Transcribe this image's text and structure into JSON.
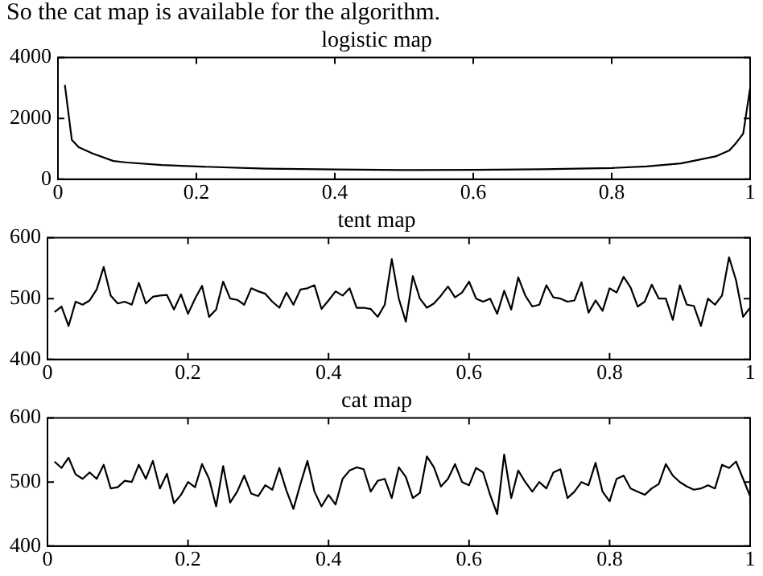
{
  "chart_data": [
    {
      "type": "line",
      "title": "logistic map",
      "annotations": [
        "So the cat map is available for the algorithm."
      ],
      "xlim": [
        0,
        1
      ],
      "xticks": [
        0,
        0.2,
        0.4,
        0.6,
        0.8,
        1
      ],
      "ylim": [
        0,
        4000
      ],
      "yticks": [
        0,
        2000,
        4000
      ],
      "grid": false,
      "legend": false,
      "marker": "none",
      "x": [
        0.01,
        0.02,
        0.03,
        0.05,
        0.08,
        0.1,
        0.15,
        0.2,
        0.3,
        0.4,
        0.5,
        0.6,
        0.7,
        0.8,
        0.85,
        0.9,
        0.95,
        0.97,
        0.98,
        0.99,
        1.0
      ],
      "series": [
        {
          "color": "#000000",
          "values": [
            3100,
            1300,
            1050,
            850,
            600,
            550,
            470,
            420,
            350,
            320,
            300,
            310,
            330,
            370,
            420,
            520,
            750,
            950,
            1200,
            1500,
            3000
          ]
        }
      ]
    },
    {
      "type": "line",
      "title": "tent map",
      "xlim": [
        0,
        1
      ],
      "xticks": [
        0,
        0.2,
        0.4,
        0.6,
        0.8,
        1
      ],
      "ylim": [
        400,
        600
      ],
      "yticks": [
        400,
        500,
        600
      ],
      "grid": false,
      "legend": false,
      "marker": "none",
      "x": [
        0.01,
        0.02,
        0.03,
        0.04,
        0.05,
        0.06,
        0.07,
        0.08,
        0.09,
        0.1,
        0.11,
        0.12,
        0.13,
        0.14,
        0.15,
        0.16,
        0.17,
        0.18,
        0.19,
        0.2,
        0.21,
        0.22,
        0.23,
        0.24,
        0.25,
        0.26,
        0.27,
        0.28,
        0.29,
        0.3,
        0.31,
        0.32,
        0.33,
        0.34,
        0.35,
        0.36,
        0.37,
        0.38,
        0.39,
        0.4,
        0.41,
        0.42,
        0.43,
        0.44,
        0.45,
        0.46,
        0.47,
        0.48,
        0.49,
        0.5,
        0.51,
        0.52,
        0.53,
        0.54,
        0.55,
        0.56,
        0.57,
        0.58,
        0.59,
        0.6,
        0.61,
        0.62,
        0.63,
        0.64,
        0.65,
        0.66,
        0.67,
        0.68,
        0.69,
        0.7,
        0.71,
        0.72,
        0.73,
        0.74,
        0.75,
        0.76,
        0.77,
        0.78,
        0.79,
        0.8,
        0.81,
        0.82,
        0.83,
        0.84,
        0.85,
        0.86,
        0.87,
        0.88,
        0.89,
        0.9,
        0.91,
        0.92,
        0.93,
        0.94,
        0.95,
        0.96,
        0.97,
        0.98,
        0.99,
        1.0
      ],
      "series": [
        {
          "color": "#000000",
          "values": [
            478,
            487,
            455,
            495,
            490,
            497,
            515,
            552,
            505,
            492,
            495,
            490,
            526,
            492,
            503,
            505,
            506,
            482,
            507,
            475,
            500,
            521,
            470,
            482,
            528,
            500,
            498,
            490,
            517,
            512,
            508,
            495,
            485,
            510,
            490,
            515,
            517,
            522,
            483,
            497,
            512,
            505,
            517,
            485,
            485,
            483,
            470,
            490,
            565,
            500,
            462,
            537,
            500,
            485,
            492,
            505,
            520,
            502,
            510,
            528,
            500,
            495,
            500,
            475,
            513,
            482,
            535,
            505,
            487,
            490,
            522,
            502,
            500,
            495,
            497,
            527,
            477,
            497,
            480,
            517,
            510,
            536,
            518,
            487,
            495,
            523,
            500,
            500,
            465,
            522,
            490,
            488,
            455,
            500,
            490,
            505,
            568,
            530,
            470,
            485
          ]
        }
      ]
    },
    {
      "type": "line",
      "title": "cat map",
      "xlim": [
        0,
        1
      ],
      "xticks": [
        0,
        0.2,
        0.4,
        0.6,
        0.8,
        1
      ],
      "ylim": [
        400,
        600
      ],
      "yticks": [
        400,
        500,
        600
      ],
      "grid": false,
      "legend": false,
      "marker": "none",
      "x": [
        0.01,
        0.02,
        0.03,
        0.04,
        0.05,
        0.06,
        0.07,
        0.08,
        0.09,
        0.1,
        0.11,
        0.12,
        0.13,
        0.14,
        0.15,
        0.16,
        0.17,
        0.18,
        0.19,
        0.2,
        0.21,
        0.22,
        0.23,
        0.24,
        0.25,
        0.26,
        0.27,
        0.28,
        0.29,
        0.3,
        0.31,
        0.32,
        0.33,
        0.34,
        0.35,
        0.36,
        0.37,
        0.38,
        0.39,
        0.4,
        0.41,
        0.42,
        0.43,
        0.44,
        0.45,
        0.46,
        0.47,
        0.48,
        0.49,
        0.5,
        0.51,
        0.52,
        0.53,
        0.54,
        0.55,
        0.56,
        0.57,
        0.58,
        0.59,
        0.6,
        0.61,
        0.62,
        0.63,
        0.64,
        0.65,
        0.66,
        0.67,
        0.68,
        0.69,
        0.7,
        0.71,
        0.72,
        0.73,
        0.74,
        0.75,
        0.76,
        0.77,
        0.78,
        0.79,
        0.8,
        0.81,
        0.82,
        0.83,
        0.84,
        0.85,
        0.86,
        0.87,
        0.88,
        0.89,
        0.9,
        0.91,
        0.92,
        0.93,
        0.94,
        0.95,
        0.96,
        0.97,
        0.98,
        0.99,
        1.0
      ],
      "series": [
        {
          "color": "#000000",
          "values": [
            532,
            522,
            538,
            512,
            505,
            515,
            505,
            527,
            490,
            492,
            502,
            500,
            527,
            505,
            533,
            490,
            513,
            467,
            480,
            500,
            492,
            528,
            505,
            462,
            525,
            468,
            485,
            510,
            482,
            478,
            495,
            488,
            522,
            487,
            458,
            497,
            533,
            485,
            462,
            480,
            465,
            505,
            518,
            523,
            520,
            485,
            502,
            505,
            475,
            523,
            508,
            475,
            483,
            540,
            523,
            493,
            505,
            528,
            500,
            495,
            522,
            515,
            480,
            450,
            543,
            475,
            518,
            500,
            485,
            500,
            490,
            515,
            520,
            475,
            485,
            500,
            495,
            530,
            485,
            470,
            505,
            510,
            490,
            485,
            480,
            490,
            497,
            528,
            510,
            500,
            493,
            488,
            490,
            495,
            490,
            527,
            522,
            532,
            505,
            478
          ]
        }
      ]
    }
  ]
}
